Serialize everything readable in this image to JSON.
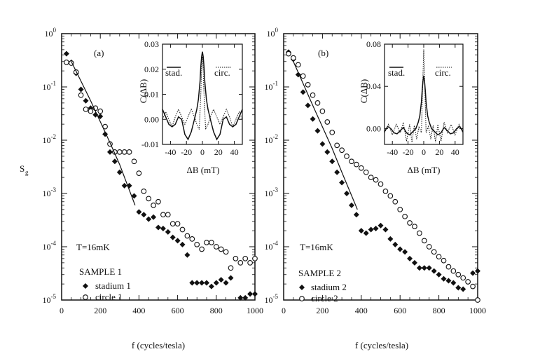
{
  "figure": {
    "ylabel_main": "S",
    "ylabel_sub": "g"
  },
  "chart_data": [
    {
      "type": "scatter",
      "panel": "(a)",
      "xlabel": "f (cycles/tesla)",
      "xlim": [
        0,
        1000
      ],
      "ylim_exp": [
        -5,
        0
      ],
      "yscale": "log",
      "x_ticks": [
        "0",
        "200",
        "400",
        "600",
        "800",
        "1000"
      ],
      "y_ticks": [
        {
          "mantissa": "10",
          "exp": "0"
        },
        {
          "mantissa": "10",
          "exp": "-1"
        },
        {
          "mantissa": "10",
          "exp": "-2"
        },
        {
          "mantissa": "10",
          "exp": "-3"
        },
        {
          "mantissa": "10",
          "exp": "-4"
        },
        {
          "mantissa": "10",
          "exp": "-5"
        }
      ],
      "temperature_label": "T=16mK",
      "sample_label": "SAMPLE 1",
      "series": [
        {
          "name": "stadium 1",
          "marker": "filled-diamond",
          "x": [
            25,
            50,
            75,
            100,
            125,
            150,
            175,
            200,
            225,
            250,
            275,
            300,
            325,
            350,
            375,
            400,
            425,
            450,
            475,
            500,
            525,
            550,
            575,
            600,
            625,
            650,
            675,
            700,
            725,
            750,
            775,
            800,
            825,
            850,
            875,
            900,
            925,
            950,
            975,
            1000
          ],
          "y": [
            0.42,
            0.29,
            0.18,
            0.09,
            0.055,
            0.04,
            0.03,
            0.028,
            0.013,
            0.006,
            0.004,
            0.0025,
            0.0014,
            0.0014,
            0.0009,
            0.00045,
            0.0004,
            0.00033,
            0.00036,
            0.00023,
            0.00022,
            0.00019,
            0.00015,
            0.00013,
            0.00011,
            7e-05,
            2.1e-05,
            2.1e-05,
            2.1e-05,
            2.1e-05,
            1.8e-05,
            2.1e-05,
            2.4e-05,
            2.1e-05,
            2.6e-05,
            9e-06,
            1.1e-05,
            1.1e-05,
            1.3e-05,
            1.3e-05
          ]
        },
        {
          "name": "circle 1",
          "marker": "open-circle",
          "x": [
            25,
            50,
            75,
            100,
            125,
            150,
            175,
            200,
            225,
            250,
            275,
            300,
            325,
            350,
            375,
            400,
            425,
            450,
            475,
            500,
            525,
            550,
            575,
            600,
            625,
            650,
            675,
            700,
            725,
            750,
            775,
            800,
            825,
            850,
            875,
            900,
            925,
            950,
            975,
            1000
          ],
          "y": [
            0.29,
            0.28,
            0.19,
            0.07,
            0.038,
            0.035,
            0.04,
            0.035,
            0.018,
            0.0085,
            0.006,
            0.006,
            0.006,
            0.006,
            0.004,
            0.0024,
            0.0011,
            0.0008,
            0.0006,
            0.0007,
            0.0004,
            0.0004,
            0.00027,
            0.00027,
            0.00021,
            0.00016,
            0.00014,
            0.00011,
            9e-05,
            0.00012,
            0.00012,
            0.0001,
            9e-05,
            8e-05,
            4e-05,
            6e-05,
            5e-05,
            6e-05,
            5e-05,
            6e-05
          ]
        },
        {
          "name": "fit",
          "marker": "line",
          "x": [
            50,
            150,
            250,
            300,
            380
          ],
          "y": [
            0.3,
            0.055,
            0.009,
            0.0035,
            0.0006
          ]
        }
      ],
      "inset": {
        "ylabel": "C(ΔB)",
        "xlabel": "ΔB (mT)",
        "xlim": [
          -50,
          50
        ],
        "ylim": [
          -0.01,
          0.03
        ],
        "x_ticks": [
          "-40",
          "-20",
          "0",
          "20",
          "40"
        ],
        "y_ticks": [
          "0.03",
          "0.02",
          "0.01",
          "0.00",
          "-0.01"
        ],
        "legend": [
          "stad.",
          "circ."
        ],
        "series": [
          {
            "name": "stad.",
            "style": "solid",
            "x": [
              -50,
              -46,
              -42,
              -38,
              -34,
              -30,
              -26,
              -22,
              -18,
              -14,
              -10,
              -7,
              -5,
              -3,
              -2,
              -1,
              0,
              1,
              2,
              3,
              5,
              7,
              10,
              14,
              18,
              22,
              26,
              30,
              34,
              38,
              42,
              46,
              50
            ],
            "y": [
              0.004,
              0.001,
              -0.002,
              -0.003,
              -0.002,
              0.001,
              0.0,
              -0.006,
              -0.008,
              -0.005,
              0.0,
              0.004,
              0.008,
              0.015,
              0.021,
              0.025,
              0.027,
              0.025,
              0.021,
              0.015,
              0.008,
              0.004,
              0.0,
              -0.005,
              -0.008,
              -0.006,
              0.0,
              0.001,
              -0.002,
              -0.003,
              -0.002,
              0.001,
              0.004
            ]
          },
          {
            "name": "circ.",
            "style": "dotted",
            "x": [
              -50,
              -46,
              -42,
              -38,
              -34,
              -30,
              -26,
              -22,
              -18,
              -14,
              -10,
              -7,
              -4,
              -2,
              -1,
              0,
              1,
              2,
              4,
              7,
              10,
              14,
              18,
              22,
              26,
              30,
              34,
              38,
              42,
              46,
              50
            ],
            "y": [
              0.0,
              0.003,
              0.0,
              -0.003,
              0.001,
              0.004,
              0.001,
              -0.002,
              0.001,
              0.004,
              0.001,
              -0.002,
              -0.004,
              0.01,
              0.02,
              0.025,
              0.02,
              0.01,
              -0.004,
              -0.002,
              0.001,
              0.004,
              0.001,
              -0.002,
              0.001,
              0.004,
              0.001,
              -0.003,
              0.0,
              0.003,
              0.0
            ]
          }
        ]
      }
    },
    {
      "type": "scatter",
      "panel": "(b)",
      "xlabel": "f (cycles/tesla)",
      "xlim": [
        0,
        1000
      ],
      "ylim_exp": [
        -5,
        0
      ],
      "yscale": "log",
      "x_ticks": [
        "0",
        "200",
        "400",
        "600",
        "800",
        "1000"
      ],
      "y_ticks": [
        {
          "mantissa": "10",
          "exp": "0"
        },
        {
          "mantissa": "10",
          "exp": "-1"
        },
        {
          "mantissa": "10",
          "exp": "-2"
        },
        {
          "mantissa": "10",
          "exp": "-3"
        },
        {
          "mantissa": "10",
          "exp": "-4"
        },
        {
          "mantissa": "10",
          "exp": "-5"
        }
      ],
      "temperature_label": "T=16mK",
      "sample_label": "SAMPLE 2",
      "series": [
        {
          "name": "stadium 2",
          "marker": "filled-diamond",
          "x": [
            25,
            50,
            75,
            100,
            125,
            150,
            175,
            200,
            225,
            250,
            275,
            300,
            325,
            350,
            375,
            400,
            425,
            450,
            475,
            500,
            525,
            550,
            575,
            600,
            625,
            650,
            675,
            700,
            725,
            750,
            775,
            800,
            825,
            850,
            875,
            900,
            925,
            950,
            975,
            1000
          ],
          "y": [
            0.45,
            0.33,
            0.17,
            0.08,
            0.045,
            0.025,
            0.015,
            0.0085,
            0.006,
            0.004,
            0.0025,
            0.0016,
            0.001,
            0.0006,
            0.0004,
            0.0002,
            0.00018,
            0.00021,
            0.00022,
            0.00025,
            0.00021,
            0.00014,
            0.00011,
            9e-05,
            8e-05,
            6e-05,
            5e-05,
            4e-05,
            4e-05,
            4e-05,
            3.5e-05,
            3e-05,
            2.5e-05,
            2.3e-05,
            2.1e-05,
            1.7e-05,
            1.6e-05,
            2.2e-05,
            3.2e-05,
            3.5e-05
          ]
        },
        {
          "name": "circle 2",
          "marker": "open-circle",
          "x": [
            25,
            50,
            75,
            100,
            125,
            150,
            175,
            200,
            225,
            250,
            275,
            300,
            325,
            350,
            375,
            400,
            425,
            450,
            475,
            500,
            525,
            550,
            575,
            600,
            625,
            650,
            675,
            700,
            725,
            750,
            775,
            800,
            825,
            850,
            875,
            900,
            925,
            950,
            975,
            1000
          ],
          "y": [
            0.42,
            0.35,
            0.26,
            0.16,
            0.11,
            0.07,
            0.05,
            0.035,
            0.022,
            0.014,
            0.008,
            0.0065,
            0.005,
            0.004,
            0.0035,
            0.003,
            0.0025,
            0.002,
            0.0018,
            0.0015,
            0.0011,
            0.0009,
            0.0007,
            0.0005,
            0.00037,
            0.00028,
            0.00024,
            0.00018,
            0.00013,
            0.0001,
            8e-05,
            6.5e-05,
            5.5e-05,
            4.2e-05,
            3.5e-05,
            3e-05,
            2.6e-05,
            2.2e-05,
            1.8e-05,
            1e-05
          ]
        },
        {
          "name": "fit",
          "marker": "line",
          "x": [
            50,
            150,
            250,
            300,
            380
          ],
          "y": [
            0.3,
            0.045,
            0.007,
            0.0025,
            0.0005
          ]
        }
      ],
      "inset": {
        "ylabel": "C(ΔB)",
        "xlabel": "ΔB (mT)",
        "xlim": [
          -50,
          50
        ],
        "ylim": [
          -0.015,
          0.08
        ],
        "x_ticks": [
          "-40",
          "-20",
          "0",
          "20",
          "40"
        ],
        "y_ticks": [
          "0.08",
          "0.04",
          "0.00"
        ],
        "y_tick_values": [
          0.08,
          0.04,
          0.0
        ],
        "legend": [
          "stad.",
          "circ."
        ],
        "series": [
          {
            "name": "stad.",
            "style": "solid",
            "x": [
              -50,
              -46,
              -42,
              -38,
              -34,
              -30,
              -26,
              -22,
              -18,
              -14,
              -10,
              -7,
              -5,
              -3,
              -2,
              -1,
              0,
              1,
              2,
              3,
              5,
              7,
              10,
              14,
              18,
              22,
              26,
              30,
              34,
              38,
              42,
              46,
              50
            ],
            "y": [
              -0.003,
              0.002,
              0.0,
              -0.004,
              -0.005,
              -0.002,
              0.001,
              -0.004,
              -0.006,
              -0.003,
              0.0,
              0.006,
              0.012,
              0.025,
              0.036,
              0.045,
              0.05,
              0.045,
              0.036,
              0.025,
              0.012,
              0.006,
              0.0,
              -0.003,
              -0.006,
              -0.004,
              0.001,
              -0.002,
              -0.005,
              -0.004,
              0.0,
              0.002,
              -0.003
            ]
          },
          {
            "name": "circ.",
            "style": "dotted",
            "x": [
              -50,
              -45,
              -40,
              -35,
              -30,
              -26,
              -22,
              -18,
              -15,
              -12,
              -9,
              -6,
              -3,
              -1,
              0,
              1,
              3,
              6,
              9,
              12,
              15,
              18,
              22,
              26,
              30,
              35,
              40,
              45,
              50
            ],
            "y": [
              -0.004,
              0.004,
              -0.006,
              0.004,
              -0.004,
              0.006,
              -0.012,
              0.004,
              -0.013,
              0.003,
              -0.01,
              0.002,
              -0.004,
              0.05,
              0.075,
              0.05,
              -0.004,
              0.002,
              -0.01,
              0.003,
              -0.013,
              0.004,
              -0.012,
              0.006,
              -0.004,
              0.004,
              -0.006,
              0.004,
              -0.004
            ]
          }
        ]
      }
    }
  ]
}
